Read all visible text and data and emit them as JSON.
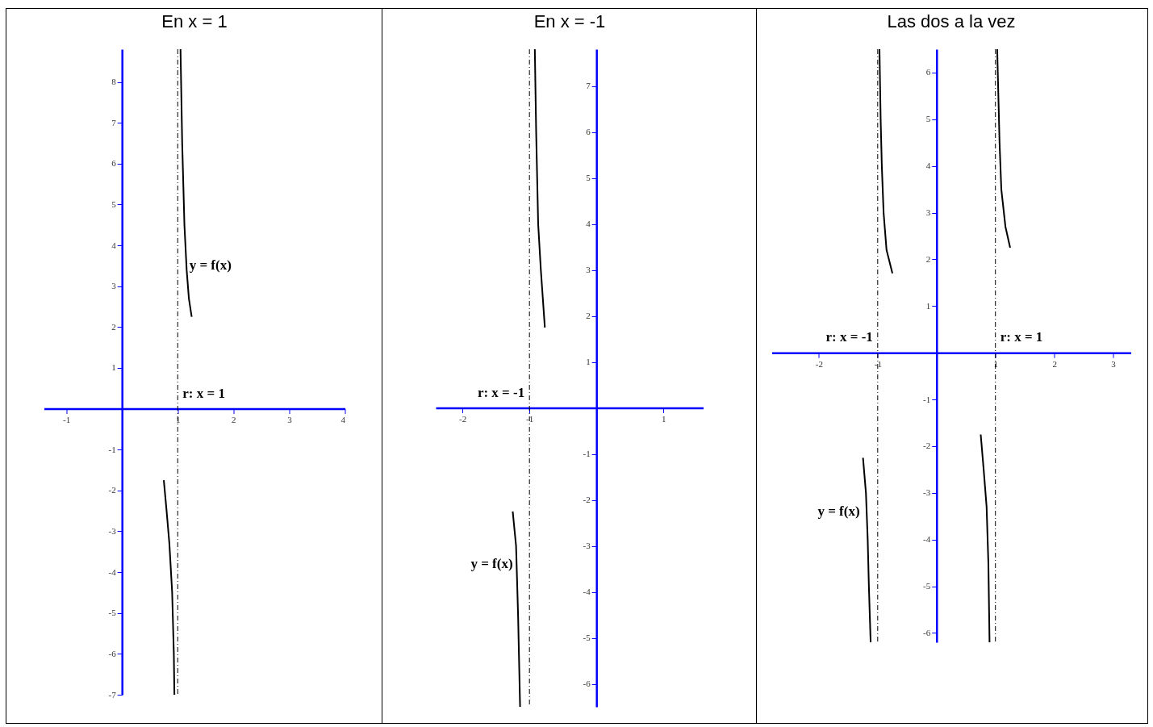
{
  "chart_data": [
    {
      "type": "line",
      "title": "En x = 1",
      "xlim": [
        -1.4,
        4
      ],
      "ylim": [
        -7,
        8.8
      ],
      "xticks": [
        -1,
        1,
        2,
        3,
        4
      ],
      "yticks": [
        -7,
        -6,
        -5,
        -4,
        -3,
        -2,
        -1,
        1,
        2,
        3,
        4,
        5,
        6,
        7,
        8
      ],
      "grid": false,
      "marker": "none",
      "line_style": "solid",
      "series": [
        {
          "color": "#000000",
          "x": [
            1.05,
            1.08,
            1.12,
            1.16,
            1.2,
            1.25
          ],
          "values": [
            8.8,
            6.5,
            4.5,
            3.4,
            2.7,
            2.25
          ]
        },
        {
          "color": "#000000",
          "x": [
            0.75,
            0.8,
            0.85,
            0.9,
            0.93,
            0.94
          ],
          "values": [
            -1.75,
            -2.5,
            -3.3,
            -4.5,
            -6,
            -7
          ]
        }
      ],
      "ref_lines": [
        {
          "axis": "x",
          "value": 1,
          "label": "r: x = 1",
          "line_style": "dashed"
        }
      ],
      "annotations": [
        {
          "text": "y = f(x)",
          "x": 1.15,
          "y": 3.5
        }
      ]
    },
    {
      "type": "line",
      "title": "En x = -1",
      "xlim": [
        -2.4,
        1.6
      ],
      "ylim": [
        -6.5,
        7.8
      ],
      "xticks": [
        -2,
        -1,
        1
      ],
      "yticks": [
        -6,
        -5,
        -4,
        -3,
        -2,
        -1,
        1,
        2,
        3,
        4,
        5,
        6,
        7
      ],
      "grid": false,
      "marker": "none",
      "line_style": "solid",
      "series": [
        {
          "color": "#000000",
          "x": [
            -0.92,
            -0.9,
            -0.87,
            -0.83,
            -0.77
          ],
          "values": [
            7.8,
            6,
            4,
            3,
            1.75
          ]
        },
        {
          "color": "#000000",
          "x": [
            -1.25,
            -1.2,
            -1.17,
            -1.14
          ],
          "values": [
            -2.25,
            -3,
            -4.5,
            -6.5
          ]
        }
      ],
      "ref_lines": [
        {
          "axis": "x",
          "value": -1,
          "label": "r: x = -1",
          "line_style": "dashed"
        }
      ],
      "annotations": [
        {
          "text": "y = f(x)",
          "x": -1.2,
          "y": -3.4
        }
      ]
    },
    {
      "type": "line",
      "title": "Las dos a la vez",
      "xlim": [
        -2.8,
        3.3
      ],
      "ylim": [
        -6.2,
        6.5
      ],
      "xticks": [
        -2,
        -1,
        1,
        2,
        3
      ],
      "yticks": [
        -6,
        -5,
        -4,
        -3,
        -2,
        -1,
        1,
        2,
        3,
        4,
        5,
        6
      ],
      "grid": false,
      "marker": "none",
      "line_style": "solid",
      "series": [
        {
          "color": "#000000",
          "x": [
            -0.97,
            -0.95,
            -0.93,
            -0.9,
            -0.85,
            -0.75
          ],
          "values": [
            6.5,
            5,
            4,
            3,
            2.2,
            1.7
          ]
        },
        {
          "color": "#000000",
          "x": [
            1.03,
            1.07,
            1.1,
            1.17,
            1.25
          ],
          "values": [
            6.5,
            4.5,
            3.5,
            2.7,
            2.25
          ]
        },
        {
          "color": "#000000",
          "x": [
            -1.25,
            -1.2,
            -1.17,
            -1.15,
            -1.12
          ],
          "values": [
            -2.25,
            -3,
            -4,
            -5,
            -6.2
          ]
        },
        {
          "color": "#000000",
          "x": [
            0.75,
            0.8,
            0.85,
            0.88,
            0.9
          ],
          "values": [
            -1.75,
            -2.5,
            -3.3,
            -4.5,
            -6.2
          ]
        }
      ],
      "ref_lines": [
        {
          "axis": "x",
          "value": -1,
          "label": "r: x = -1",
          "line_style": "dashed"
        },
        {
          "axis": "x",
          "value": 1,
          "label": "r: x = 1",
          "line_style": "dashed"
        }
      ],
      "annotations": [
        {
          "text": "y = f(x)",
          "x": -1.25,
          "y": -3.4
        }
      ]
    }
  ]
}
